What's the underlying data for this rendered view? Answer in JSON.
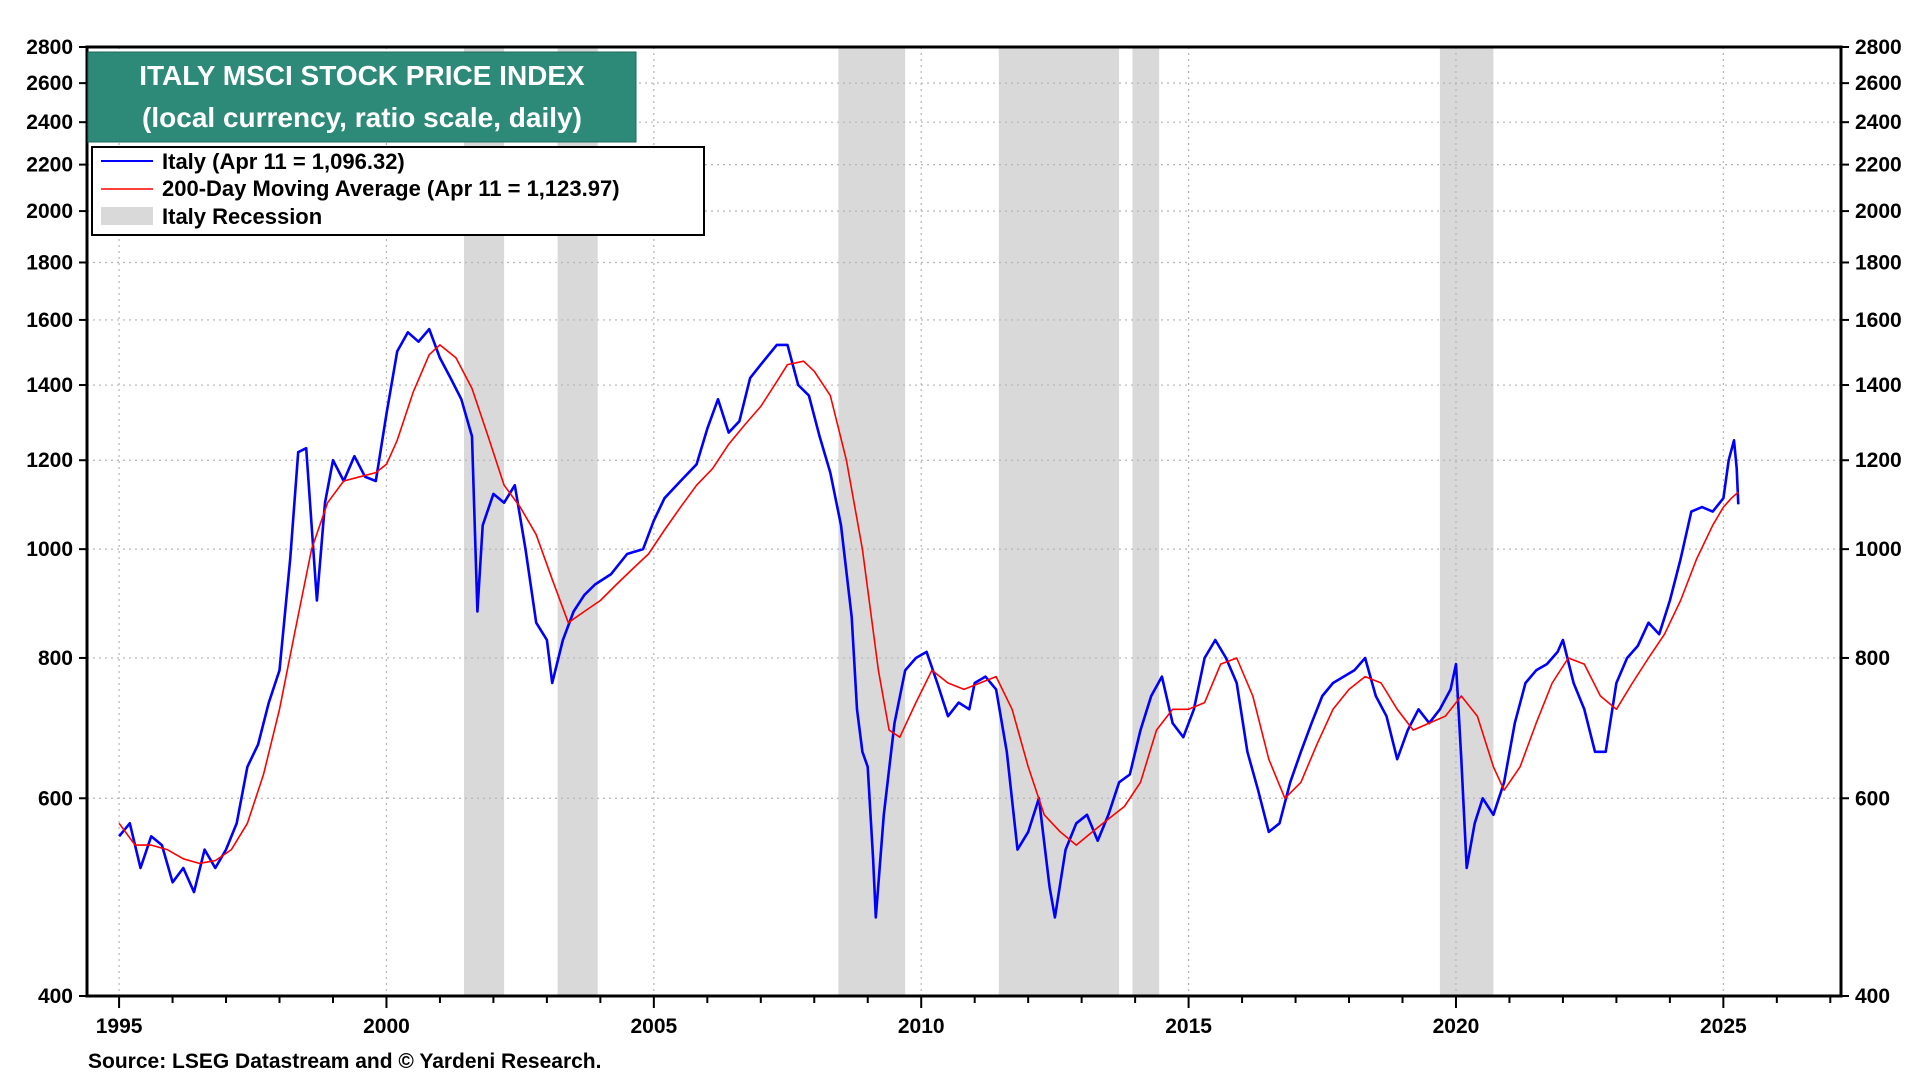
{
  "chart_data": {
    "type": "line",
    "title": "ITALY MSCI STOCK PRICE INDEX",
    "subtitle": "(local currency, ratio scale, daily)",
    "source": "Source: LSEG Datastream and © Yardeni Research.",
    "y_scale": "log",
    "ylim": [
      400,
      2800
    ],
    "xlim": [
      1994.4,
      2027.2
    ],
    "y_ticks": [
      400,
      600,
      800,
      1000,
      1200,
      1400,
      1600,
      1800,
      2000,
      2200,
      2400,
      2600,
      2800
    ],
    "y_tick_labels": [
      "400",
      "600",
      "800",
      "1000",
      "1200",
      "1400",
      "1600",
      "1800",
      "2000",
      "2200",
      "2400",
      "2600",
      "2800"
    ],
    "x_ticks": [
      1995,
      2000,
      2005,
      2010,
      2015,
      2020,
      2025
    ],
    "x_tick_labels": [
      "1995",
      "2000",
      "2005",
      "2010",
      "2015",
      "2020",
      "2025"
    ],
    "grid": true,
    "legend_position": "top-left",
    "legend": [
      {
        "label": "Italy (Apr 11 = 1,096.32)",
        "color": "#0000ff"
      },
      {
        "label": "200-Day Moving Average (Apr 11 = 1,123.97)",
        "color": "#ff0000"
      },
      {
        "label": "Italy Recession",
        "color": "#d9d9d9"
      }
    ],
    "recessions": [
      [
        2001.45,
        2002.2
      ],
      [
        2003.2,
        2003.95
      ],
      [
        2008.45,
        2009.7
      ],
      [
        2011.45,
        2013.7
      ],
      [
        2013.95,
        2014.45
      ],
      [
        2019.7,
        2020.7
      ]
    ],
    "series": [
      {
        "name": "Italy",
        "color": "#0000ff",
        "points": [
          [
            1995.0,
            555
          ],
          [
            1995.2,
            570
          ],
          [
            1995.4,
            520
          ],
          [
            1995.6,
            555
          ],
          [
            1995.8,
            545
          ],
          [
            1996.0,
            505
          ],
          [
            1996.2,
            520
          ],
          [
            1996.4,
            495
          ],
          [
            1996.6,
            540
          ],
          [
            1996.8,
            520
          ],
          [
            1997.0,
            540
          ],
          [
            1997.2,
            570
          ],
          [
            1997.4,
            640
          ],
          [
            1997.6,
            670
          ],
          [
            1997.8,
            730
          ],
          [
            1998.0,
            780
          ],
          [
            1998.2,
            980
          ],
          [
            1998.35,
            1220
          ],
          [
            1998.5,
            1230
          ],
          [
            1998.6,
            1050
          ],
          [
            1998.7,
            900
          ],
          [
            1998.85,
            1100
          ],
          [
            1999.0,
            1200
          ],
          [
            1999.2,
            1150
          ],
          [
            1999.4,
            1210
          ],
          [
            1999.6,
            1160
          ],
          [
            1999.8,
            1150
          ],
          [
            2000.0,
            1320
          ],
          [
            2000.2,
            1500
          ],
          [
            2000.4,
            1560
          ],
          [
            2000.6,
            1530
          ],
          [
            2000.8,
            1570
          ],
          [
            2001.0,
            1480
          ],
          [
            2001.2,
            1420
          ],
          [
            2001.4,
            1360
          ],
          [
            2001.6,
            1260
          ],
          [
            2001.7,
            880
          ],
          [
            2001.8,
            1050
          ],
          [
            2002.0,
            1120
          ],
          [
            2002.2,
            1100
          ],
          [
            2002.4,
            1140
          ],
          [
            2002.6,
            1000
          ],
          [
            2002.8,
            860
          ],
          [
            2003.0,
            830
          ],
          [
            2003.1,
            760
          ],
          [
            2003.3,
            830
          ],
          [
            2003.5,
            880
          ],
          [
            2003.7,
            910
          ],
          [
            2003.9,
            930
          ],
          [
            2004.2,
            950
          ],
          [
            2004.5,
            990
          ],
          [
            2004.8,
            1000
          ],
          [
            2005.0,
            1060
          ],
          [
            2005.2,
            1110
          ],
          [
            2005.5,
            1150
          ],
          [
            2005.8,
            1190
          ],
          [
            2006.0,
            1280
          ],
          [
            2006.2,
            1360
          ],
          [
            2006.4,
            1270
          ],
          [
            2006.6,
            1300
          ],
          [
            2006.8,
            1420
          ],
          [
            2007.0,
            1460
          ],
          [
            2007.3,
            1520
          ],
          [
            2007.5,
            1520
          ],
          [
            2007.7,
            1400
          ],
          [
            2007.9,
            1370
          ],
          [
            2008.1,
            1260
          ],
          [
            2008.3,
            1170
          ],
          [
            2008.5,
            1050
          ],
          [
            2008.7,
            870
          ],
          [
            2008.8,
            720
          ],
          [
            2008.9,
            660
          ],
          [
            2009.0,
            640
          ],
          [
            2009.1,
            530
          ],
          [
            2009.15,
            470
          ],
          [
            2009.3,
            580
          ],
          [
            2009.5,
            700
          ],
          [
            2009.7,
            780
          ],
          [
            2009.9,
            800
          ],
          [
            2010.1,
            810
          ],
          [
            2010.3,
            760
          ],
          [
            2010.5,
            710
          ],
          [
            2010.7,
            730
          ],
          [
            2010.9,
            720
          ],
          [
            2011.0,
            760
          ],
          [
            2011.2,
            770
          ],
          [
            2011.4,
            750
          ],
          [
            2011.6,
            660
          ],
          [
            2011.8,
            540
          ],
          [
            2012.0,
            560
          ],
          [
            2012.2,
            600
          ],
          [
            2012.4,
            500
          ],
          [
            2012.5,
            470
          ],
          [
            2012.7,
            540
          ],
          [
            2012.9,
            570
          ],
          [
            2013.1,
            580
          ],
          [
            2013.3,
            550
          ],
          [
            2013.5,
            580
          ],
          [
            2013.7,
            620
          ],
          [
            2013.9,
            630
          ],
          [
            2014.1,
            690
          ],
          [
            2014.3,
            740
          ],
          [
            2014.5,
            770
          ],
          [
            2014.7,
            700
          ],
          [
            2014.9,
            680
          ],
          [
            2015.1,
            720
          ],
          [
            2015.3,
            800
          ],
          [
            2015.5,
            830
          ],
          [
            2015.7,
            800
          ],
          [
            2015.9,
            760
          ],
          [
            2016.1,
            660
          ],
          [
            2016.3,
            610
          ],
          [
            2016.5,
            560
          ],
          [
            2016.7,
            570
          ],
          [
            2016.9,
            620
          ],
          [
            2017.1,
            660
          ],
          [
            2017.3,
            700
          ],
          [
            2017.5,
            740
          ],
          [
            2017.7,
            760
          ],
          [
            2017.9,
            770
          ],
          [
            2018.1,
            780
          ],
          [
            2018.3,
            800
          ],
          [
            2018.5,
            740
          ],
          [
            2018.7,
            710
          ],
          [
            2018.9,
            650
          ],
          [
            2019.1,
            690
          ],
          [
            2019.3,
            720
          ],
          [
            2019.5,
            700
          ],
          [
            2019.7,
            720
          ],
          [
            2019.9,
            750
          ],
          [
            2020.0,
            790
          ],
          [
            2020.1,
            650
          ],
          [
            2020.2,
            520
          ],
          [
            2020.35,
            570
          ],
          [
            2020.5,
            600
          ],
          [
            2020.7,
            580
          ],
          [
            2020.9,
            620
          ],
          [
            2021.1,
            700
          ],
          [
            2021.3,
            760
          ],
          [
            2021.5,
            780
          ],
          [
            2021.7,
            790
          ],
          [
            2021.9,
            810
          ],
          [
            2022.0,
            830
          ],
          [
            2022.2,
            760
          ],
          [
            2022.4,
            720
          ],
          [
            2022.6,
            660
          ],
          [
            2022.8,
            660
          ],
          [
            2023.0,
            760
          ],
          [
            2023.2,
            800
          ],
          [
            2023.4,
            820
          ],
          [
            2023.6,
            860
          ],
          [
            2023.8,
            840
          ],
          [
            2024.0,
            900
          ],
          [
            2024.2,
            980
          ],
          [
            2024.4,
            1080
          ],
          [
            2024.6,
            1090
          ],
          [
            2024.8,
            1080
          ],
          [
            2025.0,
            1110
          ],
          [
            2025.1,
            1200
          ],
          [
            2025.2,
            1250
          ],
          [
            2025.25,
            1180
          ],
          [
            2025.28,
            1096.32
          ]
        ]
      },
      {
        "name": "200-Day Moving Average",
        "color": "#ff0000",
        "points": [
          [
            1995.0,
            570
          ],
          [
            1995.3,
            545
          ],
          [
            1995.6,
            545
          ],
          [
            1995.9,
            540
          ],
          [
            1996.2,
            530
          ],
          [
            1996.5,
            525
          ],
          [
            1996.8,
            528
          ],
          [
            1997.1,
            540
          ],
          [
            1997.4,
            570
          ],
          [
            1997.7,
            630
          ],
          [
            1998.0,
            720
          ],
          [
            1998.3,
            850
          ],
          [
            1998.6,
            1000
          ],
          [
            1998.9,
            1100
          ],
          [
            1999.2,
            1150
          ],
          [
            1999.5,
            1160
          ],
          [
            1999.8,
            1170
          ],
          [
            2000.0,
            1190
          ],
          [
            2000.2,
            1250
          ],
          [
            2000.5,
            1380
          ],
          [
            2000.8,
            1490
          ],
          [
            2001.0,
            1520
          ],
          [
            2001.3,
            1480
          ],
          [
            2001.6,
            1390
          ],
          [
            2001.9,
            1260
          ],
          [
            2002.2,
            1140
          ],
          [
            2002.5,
            1090
          ],
          [
            2002.8,
            1030
          ],
          [
            2003.1,
            940
          ],
          [
            2003.4,
            860
          ],
          [
            2003.7,
            880
          ],
          [
            2004.0,
            900
          ],
          [
            2004.3,
            930
          ],
          [
            2004.6,
            960
          ],
          [
            2004.9,
            990
          ],
          [
            2005.2,
            1040
          ],
          [
            2005.5,
            1090
          ],
          [
            2005.8,
            1140
          ],
          [
            2006.1,
            1180
          ],
          [
            2006.4,
            1240
          ],
          [
            2006.7,
            1290
          ],
          [
            2007.0,
            1340
          ],
          [
            2007.3,
            1410
          ],
          [
            2007.5,
            1460
          ],
          [
            2007.8,
            1470
          ],
          [
            2008.0,
            1440
          ],
          [
            2008.3,
            1370
          ],
          [
            2008.6,
            1200
          ],
          [
            2008.9,
            1000
          ],
          [
            2009.2,
            780
          ],
          [
            2009.4,
            690
          ],
          [
            2009.6,
            680
          ],
          [
            2009.9,
            730
          ],
          [
            2010.2,
            780
          ],
          [
            2010.5,
            760
          ],
          [
            2010.8,
            750
          ],
          [
            2011.1,
            760
          ],
          [
            2011.4,
            770
          ],
          [
            2011.7,
            720
          ],
          [
            2012.0,
            640
          ],
          [
            2012.3,
            580
          ],
          [
            2012.6,
            560
          ],
          [
            2012.9,
            545
          ],
          [
            2013.2,
            560
          ],
          [
            2013.5,
            575
          ],
          [
            2013.8,
            590
          ],
          [
            2014.1,
            620
          ],
          [
            2014.4,
            690
          ],
          [
            2014.7,
            720
          ],
          [
            2015.0,
            720
          ],
          [
            2015.3,
            730
          ],
          [
            2015.6,
            790
          ],
          [
            2015.9,
            800
          ],
          [
            2016.2,
            740
          ],
          [
            2016.5,
            650
          ],
          [
            2016.8,
            600
          ],
          [
            2017.1,
            620
          ],
          [
            2017.4,
            670
          ],
          [
            2017.7,
            720
          ],
          [
            2018.0,
            750
          ],
          [
            2018.3,
            770
          ],
          [
            2018.6,
            760
          ],
          [
            2018.9,
            720
          ],
          [
            2019.2,
            690
          ],
          [
            2019.5,
            700
          ],
          [
            2019.8,
            710
          ],
          [
            2020.1,
            740
          ],
          [
            2020.4,
            710
          ],
          [
            2020.7,
            640
          ],
          [
            2020.9,
            610
          ],
          [
            2021.2,
            640
          ],
          [
            2021.5,
            700
          ],
          [
            2021.8,
            760
          ],
          [
            2022.1,
            800
          ],
          [
            2022.4,
            790
          ],
          [
            2022.7,
            740
          ],
          [
            2023.0,
            720
          ],
          [
            2023.3,
            760
          ],
          [
            2023.6,
            800
          ],
          [
            2023.9,
            840
          ],
          [
            2024.2,
            900
          ],
          [
            2024.5,
            980
          ],
          [
            2024.8,
            1050
          ],
          [
            2025.0,
            1090
          ],
          [
            2025.15,
            1110
          ],
          [
            2025.28,
            1123.97
          ]
        ]
      }
    ]
  }
}
